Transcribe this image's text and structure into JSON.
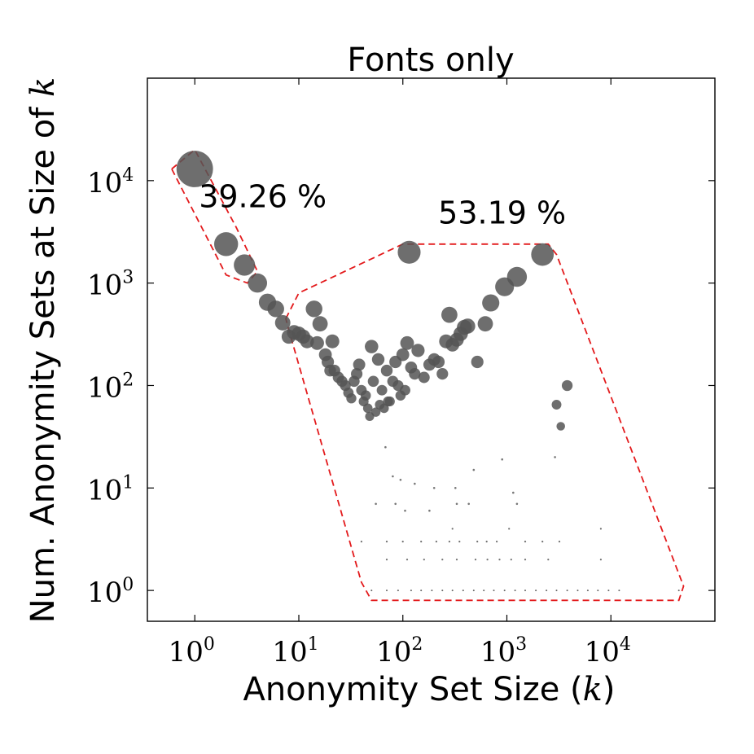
{
  "chart_data": {
    "type": "scatter",
    "title": "Fonts only",
    "xlabel": "Anonymity Set Size (k)",
    "xlabel_text": "Anonymity Set Size (",
    "xlabel_var": "k",
    "xlabel_close": ")",
    "ylabel": "Num. Anonymity Sets at Size of k",
    "ylabel_text": "Num. Anonymity Sets at Size of ",
    "ylabel_var": "k",
    "x_scale": "log",
    "y_scale": "log",
    "xlim": [
      0.35,
      100000
    ],
    "ylim": [
      0.5,
      100000
    ],
    "xticks": [
      {
        "value": 1,
        "base": "10",
        "exp": "0"
      },
      {
        "value": 10,
        "base": "10",
        "exp": "1"
      },
      {
        "value": 100,
        "base": "10",
        "exp": "2"
      },
      {
        "value": 1000,
        "base": "10",
        "exp": "3"
      },
      {
        "value": 10000,
        "base": "10",
        "exp": "4"
      }
    ],
    "yticks": [
      {
        "value": 1,
        "base": "10",
        "exp": "0"
      },
      {
        "value": 10,
        "base": "10",
        "exp": "1"
      },
      {
        "value": 100,
        "base": "10",
        "exp": "2"
      },
      {
        "value": 1000,
        "base": "10",
        "exp": "3"
      },
      {
        "value": 10000,
        "base": "10",
        "exp": "4"
      }
    ],
    "grid": false,
    "marker_size": "proportional to number of anonymity sets",
    "marker_color": "#555555",
    "highlight_color": "#e31a1c",
    "annotations": [
      {
        "text": "39.26 %",
        "x": 4.5,
        "y": 5500
      },
      {
        "text": "53.19 %",
        "x": 900,
        "y": 3800
      }
    ],
    "regions": [
      {
        "label": "39.26 %",
        "polygon": [
          [
            0.6,
            13000
          ],
          [
            1.0,
            20000
          ],
          [
            2.5,
            3500
          ],
          [
            4.0,
            1300
          ],
          [
            3.2,
            1000
          ],
          [
            2.0,
            1200
          ],
          [
            0.6,
            13000
          ]
        ]
      },
      {
        "label": "53.19 %",
        "polygon": [
          [
            7.5,
            450
          ],
          [
            10,
            800
          ],
          [
            100,
            2400
          ],
          [
            2500,
            2400
          ],
          [
            3000,
            1900
          ],
          [
            50000,
            1.1
          ],
          [
            45000,
            0.8
          ],
          [
            50,
            0.8
          ],
          [
            40,
            1.2
          ],
          [
            8,
            350
          ],
          [
            7.5,
            450
          ]
        ]
      }
    ],
    "points": [
      {
        "x": 1,
        "y": 13000
      },
      {
        "x": 2,
        "y": 2400
      },
      {
        "x": 3,
        "y": 1500
      },
      {
        "x": 4,
        "y": 1000
      },
      {
        "x": 5,
        "y": 650
      },
      {
        "x": 6,
        "y": 560
      },
      {
        "x": 7,
        "y": 410
      },
      {
        "x": 8,
        "y": 300
      },
      {
        "x": 9,
        "y": 330
      },
      {
        "x": 10,
        "y": 320
      },
      {
        "x": 11,
        "y": 300
      },
      {
        "x": 12,
        "y": 270
      },
      {
        "x": 14,
        "y": 560
      },
      {
        "x": 15,
        "y": 260
      },
      {
        "x": 16,
        "y": 400
      },
      {
        "x": 18,
        "y": 200
      },
      {
        "x": 19,
        "y": 170
      },
      {
        "x": 20,
        "y": 140
      },
      {
        "x": 21,
        "y": 270
      },
      {
        "x": 22,
        "y": 140
      },
      {
        "x": 24,
        "y": 120
      },
      {
        "x": 26,
        "y": 110
      },
      {
        "x": 28,
        "y": 100
      },
      {
        "x": 30,
        "y": 85
      },
      {
        "x": 32,
        "y": 75
      },
      {
        "x": 34,
        "y": 110
      },
      {
        "x": 36,
        "y": 130
      },
      {
        "x": 38,
        "y": 160
      },
      {
        "x": 40,
        "y": 90
      },
      {
        "x": 42,
        "y": 70
      },
      {
        "x": 44,
        "y": 80
      },
      {
        "x": 46,
        "y": 60
      },
      {
        "x": 48,
        "y": 50
      },
      {
        "x": 50,
        "y": 240
      },
      {
        "x": 52,
        "y": 110
      },
      {
        "x": 55,
        "y": 55
      },
      {
        "x": 58,
        "y": 180
      },
      {
        "x": 60,
        "y": 65
      },
      {
        "x": 63,
        "y": 90
      },
      {
        "x": 66,
        "y": 60
      },
      {
        "x": 70,
        "y": 140
      },
      {
        "x": 72,
        "y": 70
      },
      {
        "x": 75,
        "y": 70
      },
      {
        "x": 80,
        "y": 110
      },
      {
        "x": 85,
        "y": 170
      },
      {
        "x": 90,
        "y": 100
      },
      {
        "x": 95,
        "y": 80
      },
      {
        "x": 100,
        "y": 200
      },
      {
        "x": 105,
        "y": 90
      },
      {
        "x": 110,
        "y": 260
      },
      {
        "x": 115,
        "y": 2000
      },
      {
        "x": 120,
        "y": 150
      },
      {
        "x": 130,
        "y": 130
      },
      {
        "x": 140,
        "y": 220
      },
      {
        "x": 160,
        "y": 120
      },
      {
        "x": 180,
        "y": 160
      },
      {
        "x": 200,
        "y": 180
      },
      {
        "x": 220,
        "y": 170
      },
      {
        "x": 240,
        "y": 130
      },
      {
        "x": 260,
        "y": 270
      },
      {
        "x": 280,
        "y": 490
      },
      {
        "x": 300,
        "y": 250
      },
      {
        "x": 330,
        "y": 280
      },
      {
        "x": 360,
        "y": 320
      },
      {
        "x": 390,
        "y": 370
      },
      {
        "x": 420,
        "y": 380
      },
      {
        "x": 520,
        "y": 170
      },
      {
        "x": 620,
        "y": 400
      },
      {
        "x": 700,
        "y": 640
      },
      {
        "x": 950,
        "y": 920
      },
      {
        "x": 1250,
        "y": 1150
      },
      {
        "x": 2200,
        "y": 1900
      },
      {
        "x": 3000,
        "y": 65
      },
      {
        "x": 3300,
        "y": 40
      },
      {
        "x": 3800,
        "y": 100
      },
      {
        "x": 2900,
        "y": 20
      },
      {
        "x": 68,
        "y": 25
      },
      {
        "x": 80,
        "y": 13
      },
      {
        "x": 95,
        "y": 12
      },
      {
        "x": 130,
        "y": 11
      },
      {
        "x": 200,
        "y": 10
      },
      {
        "x": 320,
        "y": 10
      },
      {
        "x": 480,
        "y": 15
      },
      {
        "x": 900,
        "y": 19
      },
      {
        "x": 1150,
        "y": 9
      },
      {
        "x": 55,
        "y": 7
      },
      {
        "x": 85,
        "y": 7
      },
      {
        "x": 105,
        "y": 6
      },
      {
        "x": 180,
        "y": 6
      },
      {
        "x": 330,
        "y": 7
      },
      {
        "x": 430,
        "y": 7
      },
      {
        "x": 1250,
        "y": 7
      },
      {
        "x": 300,
        "y": 4
      },
      {
        "x": 1050,
        "y": 4
      },
      {
        "x": 8000,
        "y": 4
      },
      {
        "x": 40,
        "y": 3
      },
      {
        "x": 70,
        "y": 3
      },
      {
        "x": 100,
        "y": 3
      },
      {
        "x": 150,
        "y": 3
      },
      {
        "x": 210,
        "y": 3
      },
      {
        "x": 280,
        "y": 3
      },
      {
        "x": 350,
        "y": 3
      },
      {
        "x": 520,
        "y": 3
      },
      {
        "x": 640,
        "y": 3
      },
      {
        "x": 800,
        "y": 3
      },
      {
        "x": 1500,
        "y": 3
      },
      {
        "x": 2200,
        "y": 3
      },
      {
        "x": 3200,
        "y": 3
      },
      {
        "x": 70,
        "y": 2
      },
      {
        "x": 110,
        "y": 2
      },
      {
        "x": 160,
        "y": 2
      },
      {
        "x": 240,
        "y": 2
      },
      {
        "x": 330,
        "y": 2
      },
      {
        "x": 500,
        "y": 2
      },
      {
        "x": 650,
        "y": 2
      },
      {
        "x": 850,
        "y": 2
      },
      {
        "x": 1100,
        "y": 2
      },
      {
        "x": 1500,
        "y": 2
      },
      {
        "x": 2500,
        "y": 2
      },
      {
        "x": 8000,
        "y": 2
      },
      {
        "x": 50,
        "y": 1
      },
      {
        "x": 70,
        "y": 1
      },
      {
        "x": 90,
        "y": 1
      },
      {
        "x": 120,
        "y": 1
      },
      {
        "x": 150,
        "y": 1
      },
      {
        "x": 190,
        "y": 1
      },
      {
        "x": 240,
        "y": 1
      },
      {
        "x": 300,
        "y": 1
      },
      {
        "x": 380,
        "y": 1
      },
      {
        "x": 480,
        "y": 1
      },
      {
        "x": 600,
        "y": 1
      },
      {
        "x": 750,
        "y": 1
      },
      {
        "x": 950,
        "y": 1
      },
      {
        "x": 1200,
        "y": 1
      },
      {
        "x": 1500,
        "y": 1
      },
      {
        "x": 1900,
        "y": 1
      },
      {
        "x": 2400,
        "y": 1
      },
      {
        "x": 3000,
        "y": 1
      },
      {
        "x": 3800,
        "y": 1
      },
      {
        "x": 4800,
        "y": 1
      },
      {
        "x": 6000,
        "y": 1
      },
      {
        "x": 7500,
        "y": 1
      },
      {
        "x": 9500,
        "y": 1
      },
      {
        "x": 12000,
        "y": 1
      },
      {
        "x": 45000,
        "y": 1
      }
    ]
  }
}
